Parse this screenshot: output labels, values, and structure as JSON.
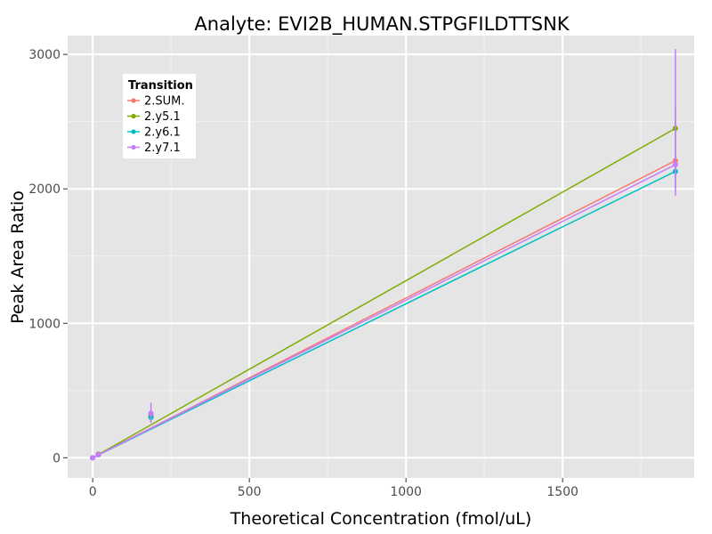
{
  "chart_data": {
    "type": "line",
    "title": "Analyte: EVI2B_HUMAN.STPGFILDTTSNK",
    "xlabel": "Theoretical Concentration (fmol/uL)",
    "ylabel": "Peak Area Ratio",
    "xlim": [
      -80,
      1920
    ],
    "ylim": [
      -150,
      3140
    ],
    "x_ticks": [
      0,
      500,
      1000,
      1500
    ],
    "y_ticks": [
      0,
      1000,
      2000,
      3000
    ],
    "x_tick_labels": [
      "0",
      "500",
      "1000",
      "1500"
    ],
    "y_tick_labels": [
      "0",
      "1000",
      "2000",
      "3000"
    ],
    "grid": true,
    "legend": {
      "title": "Transition",
      "position": "top-left"
    },
    "series": [
      {
        "name": "2.SUM.",
        "color": "#F8766D",
        "line": [
          [
            0,
            0
          ],
          [
            1860,
            2210
          ]
        ],
        "points": [
          [
            0,
            0
          ],
          [
            18,
            25
          ],
          [
            186,
            310
          ],
          [
            1860,
            2210
          ]
        ],
        "errorbars": [
          [
            186,
            280,
            340
          ],
          [
            1860,
            2050,
            2380
          ]
        ]
      },
      {
        "name": "2.y5.1",
        "color": "#7CAE00",
        "line": [
          [
            0,
            0
          ],
          [
            1860,
            2450
          ]
        ],
        "points": [
          [
            0,
            0
          ],
          [
            18,
            27
          ],
          [
            186,
            320
          ],
          [
            1860,
            2450
          ]
        ],
        "errorbars": [
          [
            186,
            290,
            355
          ],
          [
            1860,
            2300,
            2620
          ]
        ]
      },
      {
        "name": "2.y6.1",
        "color": "#00BFC4",
        "line": [
          [
            0,
            0
          ],
          [
            1860,
            2130
          ]
        ],
        "points": [
          [
            0,
            0
          ],
          [
            18,
            22
          ],
          [
            186,
            300
          ],
          [
            1860,
            2130
          ]
        ],
        "errorbars": [
          [
            186,
            270,
            330
          ],
          [
            1860,
            2000,
            2280
          ]
        ]
      },
      {
        "name": "2.y7.1",
        "color": "#C77CFF",
        "line": [
          [
            0,
            0
          ],
          [
            1860,
            2180
          ]
        ],
        "points": [
          [
            0,
            0
          ],
          [
            18,
            24
          ],
          [
            186,
            330
          ],
          [
            1860,
            2180
          ]
        ],
        "errorbars": [
          [
            186,
            260,
            410
          ],
          [
            1860,
            1950,
            3040
          ]
        ]
      }
    ]
  }
}
